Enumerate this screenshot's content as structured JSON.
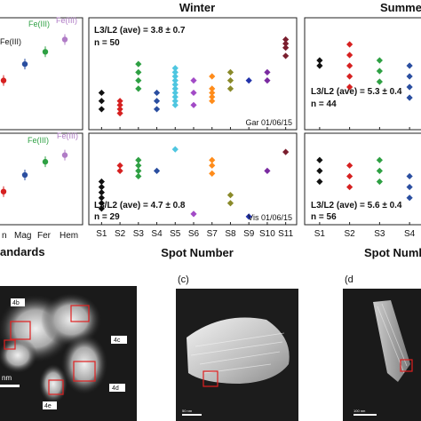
{
  "colors": {
    "S1": "#111111",
    "S2": "#d62020",
    "S3": "#2ea043",
    "S4": "#2a4ea0",
    "S5": "#4fc6e0",
    "S6": "#a24ac6",
    "S7": "#ff8c1a",
    "S8": "#8a8a2a",
    "S9": "#2233aa",
    "S10": "#7a2aa0",
    "S11": "#7a1e2e",
    "FeII": "#d62020",
    "Mag": "#2a4ea0",
    "Fer": "#2ea043",
    "Hem": "#b07cc6"
  },
  "labels": {
    "standards": "andards",
    "spot_number": "Spot Number",
    "spot_number_cut": "Spot Numb",
    "panel_c": "(c)",
    "panel_d": "(d"
  },
  "chart_data": [
    {
      "id": "standards",
      "type": "scatter",
      "categories": [
        "n",
        "Mag",
        "Fer",
        "Hem"
      ],
      "top_labels": [
        "Fe(III)",
        "Fe(III)",
        "Fe(III)"
      ],
      "bottom_labels": [
        "Fe(III)",
        "Fe(III)"
      ],
      "top_values": [
        4.2,
        4.6,
        4.9,
        5.2
      ],
      "bottom_values": [
        4.0,
        4.5,
        4.9,
        5.1
      ]
    },
    {
      "id": "winter",
      "type": "scatter",
      "title": "Winter",
      "categories": [
        "S1",
        "S2",
        "S3",
        "S4",
        "S5",
        "S6",
        "S7",
        "S8",
        "S9",
        "S10",
        "S11"
      ],
      "top": {
        "annotation_ratio": "L3/L2 (ave) = 3.8 ± 0.7",
        "annotation_n": "n = 50",
        "sample": "Gar 01/06/15",
        "series": [
          {
            "name": "S1",
            "values": [
              3.1,
              3.3,
              3.5
            ]
          },
          {
            "name": "S2",
            "values": [
              3.0,
              3.1,
              3.2,
              3.3
            ]
          },
          {
            "name": "S3",
            "values": [
              3.6,
              3.8,
              4.0,
              4.2
            ]
          },
          {
            "name": "S4",
            "values": [
              3.1,
              3.3,
              3.5
            ]
          },
          {
            "name": "S5",
            "values": [
              3.2,
              3.3,
              3.4,
              3.5,
              3.6,
              3.7,
              3.8,
              3.9,
              4.0,
              4.1
            ]
          },
          {
            "name": "S6",
            "values": [
              3.2,
              3.5,
              3.8
            ]
          },
          {
            "name": "S7",
            "values": [
              3.3,
              3.4,
              3.5,
              3.6,
              3.9
            ]
          },
          {
            "name": "S8",
            "values": [
              3.6,
              3.8,
              4.0
            ]
          },
          {
            "name": "S9",
            "values": [
              3.8
            ]
          },
          {
            "name": "S10",
            "values": [
              3.8,
              4.0
            ]
          },
          {
            "name": "S11",
            "values": [
              4.4,
              4.6,
              4.7,
              4.8
            ]
          }
        ]
      },
      "bottom": {
        "annotation_ratio": "L3/L2 (ave) = 4.7 ± 0.8",
        "annotation_n": "n = 29",
        "sample": "Vis 01/06/15",
        "series": [
          {
            "name": "S1",
            "values": [
              3.4,
              3.6,
              3.8,
              4.0,
              4.2,
              4.4
            ]
          },
          {
            "name": "S2",
            "values": [
              4.8,
              5.0
            ]
          },
          {
            "name": "S3",
            "values": [
              4.6,
              4.8,
              5.0,
              5.2
            ]
          },
          {
            "name": "S4",
            "values": [
              4.8
            ]
          },
          {
            "name": "S5",
            "values": [
              5.6
            ]
          },
          {
            "name": "S6",
            "values": [
              3.2
            ]
          },
          {
            "name": "S7",
            "values": [
              4.7,
              5.0,
              5.2
            ]
          },
          {
            "name": "S8",
            "values": [
              3.6,
              3.9
            ]
          },
          {
            "name": "S9",
            "values": [
              3.1
            ]
          },
          {
            "name": "S10",
            "values": [
              4.8
            ]
          },
          {
            "name": "S11",
            "values": [
              5.5
            ]
          }
        ]
      }
    },
    {
      "id": "summer",
      "type": "scatter",
      "title": "Summe",
      "categories": [
        "S1",
        "S2",
        "S3",
        "S4"
      ],
      "top": {
        "annotation_ratio": "L3/L2 (ave) = 5.3 ± 0.4",
        "annotation_n": "n = 44",
        "series": [
          {
            "name": "S1",
            "values": [
              5.6,
              5.7
            ]
          },
          {
            "name": "S2",
            "values": [
              5.2,
              5.4,
              5.6,
              5.8,
              6.0
            ]
          },
          {
            "name": "S3",
            "values": [
              5.3,
              5.5,
              5.7
            ]
          },
          {
            "name": "S4",
            "values": [
              5.0,
              5.2,
              5.4,
              5.6
            ]
          }
        ]
      },
      "bottom": {
        "annotation_ratio": "L3/L2 (ave) = 5.6 ± 0.4",
        "annotation_n": "n = 56",
        "series": [
          {
            "name": "S1",
            "values": [
              5.6,
              5.8,
              6.0
            ]
          },
          {
            "name": "S2",
            "values": [
              5.5,
              5.7,
              5.9
            ]
          },
          {
            "name": "S3",
            "values": [
              5.6,
              5.8,
              6.0
            ]
          },
          {
            "name": "S4",
            "values": [
              5.3,
              5.5,
              5.7
            ]
          }
        ]
      }
    }
  ],
  "micrographs": {
    "b_labels": [
      "4b",
      "4c",
      "4d",
      "4e"
    ],
    "b_scale": "nm",
    "c_scale": "50 nm",
    "d_scale": "100 nm"
  }
}
